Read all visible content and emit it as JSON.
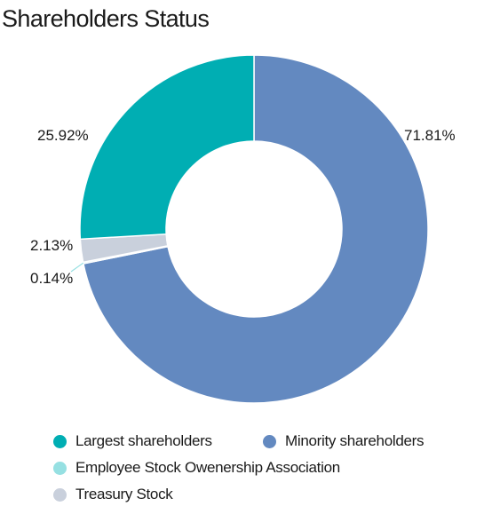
{
  "chart_data": {
    "type": "pie",
    "title": "Shareholders Status",
    "categories": [
      "Largest shareholders",
      "Minority shareholders",
      "Employee Stock Owenership Association",
      "Treasury Stock"
    ],
    "values": [
      25.92,
      71.81,
      0.14,
      2.13
    ],
    "value_labels": [
      "25.92%",
      "71.81%",
      "0.14%",
      "2.13%"
    ],
    "colors": [
      "#00aeb3",
      "#6389c0",
      "#96e0e2",
      "#c9d0dc"
    ],
    "donut": true,
    "legend_position": "bottom"
  }
}
